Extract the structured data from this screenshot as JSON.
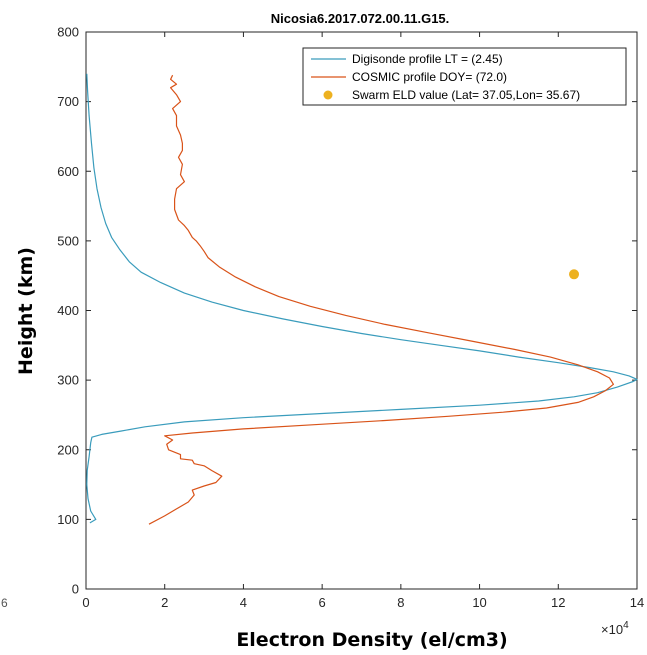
{
  "chart_data": {
    "type": "line",
    "title": "Nicosia6.2017.072.00.11.G15.",
    "xlabel": "Electron Density (el/cm3)",
    "ylabel": "Height (km)",
    "x_exponent_label": "×10",
    "x_exponent_power": "4",
    "edge_fragment": "6",
    "xlim": [
      0,
      14
    ],
    "ylim": [
      0,
      800
    ],
    "xticks": [
      0,
      2,
      4,
      6,
      8,
      10,
      12,
      14
    ],
    "yticks": [
      0,
      100,
      200,
      300,
      400,
      500,
      600,
      700,
      800
    ],
    "grid": false,
    "legend_position": "top-right",
    "series": [
      {
        "name": "Digisonde profile LT = (2.45)",
        "color": "#3a9cbc",
        "kind": "line",
        "points": [
          [
            0.1,
            95
          ],
          [
            0.25,
            100
          ],
          [
            0.12,
            112
          ],
          [
            0.05,
            130
          ],
          [
            0.02,
            150
          ],
          [
            0.03,
            170
          ],
          [
            0.08,
            190
          ],
          [
            0.12,
            210
          ],
          [
            0.15,
            218
          ],
          [
            0.4,
            222
          ],
          [
            0.9,
            227
          ],
          [
            1.5,
            233
          ],
          [
            2.5,
            240
          ],
          [
            4.0,
            246
          ],
          [
            6.0,
            252
          ],
          [
            8.0,
            258
          ],
          [
            10.0,
            264
          ],
          [
            11.5,
            270
          ],
          [
            12.4,
            276
          ],
          [
            13.0,
            282
          ],
          [
            13.5,
            290
          ],
          [
            13.9,
            298
          ],
          [
            14.0,
            301
          ],
          [
            13.8,
            306
          ],
          [
            13.4,
            312
          ],
          [
            12.8,
            318
          ],
          [
            12.0,
            325
          ],
          [
            11.0,
            333
          ],
          [
            10.0,
            342
          ],
          [
            9.0,
            350
          ],
          [
            8.0,
            358
          ],
          [
            7.0,
            367
          ],
          [
            6.0,
            377
          ],
          [
            5.0,
            388
          ],
          [
            4.0,
            400
          ],
          [
            3.2,
            412
          ],
          [
            2.5,
            425
          ],
          [
            1.9,
            440
          ],
          [
            1.4,
            455
          ],
          [
            1.1,
            470
          ],
          [
            0.85,
            488
          ],
          [
            0.65,
            505
          ],
          [
            0.5,
            525
          ],
          [
            0.38,
            548
          ],
          [
            0.28,
            575
          ],
          [
            0.2,
            605
          ],
          [
            0.14,
            640
          ],
          [
            0.08,
            680
          ],
          [
            0.04,
            715
          ],
          [
            0.02,
            740
          ]
        ]
      },
      {
        "name": "COSMIC profile DOY= (72.0)",
        "color": "#d95319",
        "kind": "line",
        "points": [
          [
            1.6,
            93
          ],
          [
            2.0,
            105
          ],
          [
            2.3,
            115
          ],
          [
            2.6,
            125
          ],
          [
            2.75,
            135
          ],
          [
            2.7,
            142
          ],
          [
            3.0,
            148
          ],
          [
            3.3,
            153
          ],
          [
            3.45,
            162
          ],
          [
            3.2,
            170
          ],
          [
            3.0,
            177
          ],
          [
            2.75,
            180
          ],
          [
            2.7,
            185
          ],
          [
            2.4,
            187
          ],
          [
            2.4,
            193
          ],
          [
            2.1,
            200
          ],
          [
            2.05,
            208
          ],
          [
            2.2,
            214
          ],
          [
            2.0,
            220
          ],
          [
            2.7,
            224
          ],
          [
            4.0,
            230
          ],
          [
            5.8,
            236
          ],
          [
            7.6,
            242
          ],
          [
            9.2,
            248
          ],
          [
            10.6,
            254
          ],
          [
            11.7,
            260
          ],
          [
            12.5,
            268
          ],
          [
            12.9,
            276
          ],
          [
            13.2,
            285
          ],
          [
            13.4,
            294
          ],
          [
            13.3,
            303
          ],
          [
            13.0,
            312
          ],
          [
            12.5,
            322
          ],
          [
            11.8,
            333
          ],
          [
            10.9,
            344
          ],
          [
            9.8,
            356
          ],
          [
            8.7,
            368
          ],
          [
            7.6,
            380
          ],
          [
            6.6,
            393
          ],
          [
            5.7,
            406
          ],
          [
            4.9,
            420
          ],
          [
            4.3,
            434
          ],
          [
            3.8,
            448
          ],
          [
            3.4,
            462
          ],
          [
            3.1,
            476
          ],
          [
            3.0,
            485
          ],
          [
            2.9,
            493
          ],
          [
            2.8,
            500
          ],
          [
            2.7,
            505
          ],
          [
            2.6,
            515
          ],
          [
            2.5,
            522
          ],
          [
            2.35,
            530
          ],
          [
            2.25,
            545
          ],
          [
            2.25,
            560
          ],
          [
            2.3,
            575
          ],
          [
            2.5,
            585
          ],
          [
            2.4,
            595
          ],
          [
            2.45,
            610
          ],
          [
            2.35,
            620
          ],
          [
            2.45,
            630
          ],
          [
            2.45,
            640
          ],
          [
            2.4,
            652
          ],
          [
            2.3,
            665
          ],
          [
            2.3,
            680
          ],
          [
            2.2,
            690
          ],
          [
            2.4,
            700
          ],
          [
            2.3,
            710
          ],
          [
            2.15,
            720
          ],
          [
            2.3,
            725
          ],
          [
            2.15,
            732
          ],
          [
            2.2,
            738
          ]
        ]
      },
      {
        "name": "Swarm ELD value (Lat= 37.05,Lon= 35.67)",
        "color": "#edb120",
        "kind": "marker",
        "points": [
          [
            12.4,
            452
          ]
        ]
      }
    ]
  }
}
